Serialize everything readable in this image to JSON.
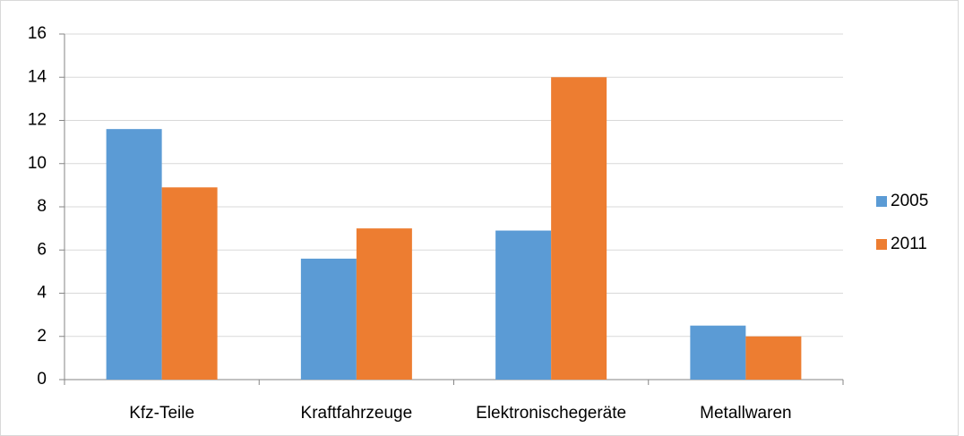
{
  "chart_data": {
    "type": "bar",
    "categories": [
      "Kfz-Teile",
      "Kraftfahrzeuge",
      "Elektronischegeräte",
      "Metallwaren"
    ],
    "series": [
      {
        "name": "2005",
        "color": "#5b9bd5",
        "values": [
          11.6,
          5.6,
          6.9,
          2.5
        ]
      },
      {
        "name": "2011",
        "color": "#ed7d31",
        "values": [
          8.9,
          7.0,
          14.0,
          2.0
        ]
      }
    ],
    "ylim": [
      0,
      16
    ],
    "yticks": [
      0,
      2,
      4,
      6,
      8,
      10,
      12,
      14,
      16
    ],
    "grid": true,
    "legend": "right"
  }
}
